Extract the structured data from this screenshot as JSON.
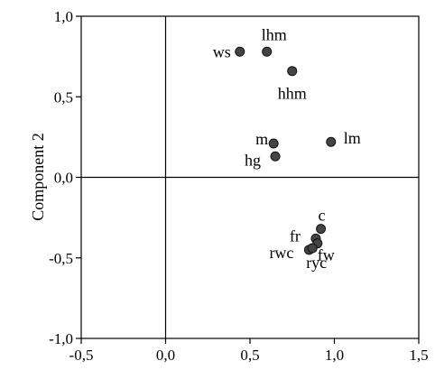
{
  "chart_data": {
    "type": "scatter",
    "title": "",
    "xlabel": "",
    "ylabel": "Component 2",
    "xlim": [
      -0.5,
      1.5
    ],
    "ylim": [
      -1.0,
      1.0
    ],
    "x_ticks": [
      -0.5,
      0.0,
      0.5,
      1.0,
      1.5
    ],
    "y_ticks": [
      -1.0,
      -0.5,
      0.0,
      0.5,
      1.0
    ],
    "x_tick_labels": [
      "-0,5",
      "0,0",
      "0,5",
      "1,0",
      "1,5"
    ],
    "y_tick_labels": [
      "-1,0",
      "-0,5",
      "0,0",
      "0,5",
      "1,0"
    ],
    "reference_lines": {
      "x": 0.0,
      "y": 0.0
    },
    "grid": false,
    "marker_color": "#444444",
    "points": [
      {
        "label": "ws",
        "x": 0.44,
        "y": 0.78
      },
      {
        "label": "lhm",
        "x": 0.6,
        "y": 0.78
      },
      {
        "label": "hhm",
        "x": 0.75,
        "y": 0.66
      },
      {
        "label": "m",
        "x": 0.64,
        "y": 0.21
      },
      {
        "label": "hg",
        "x": 0.65,
        "y": 0.13
      },
      {
        "label": "lm",
        "x": 0.98,
        "y": 0.22
      },
      {
        "label": "c",
        "x": 0.92,
        "y": -0.32
      },
      {
        "label": "fr",
        "x": 0.89,
        "y": -0.38
      },
      {
        "label": "fw",
        "x": 0.9,
        "y": -0.41
      },
      {
        "label": "rwc",
        "x": 0.85,
        "y": -0.45
      },
      {
        "label": "ryc",
        "x": 0.87,
        "y": -0.44
      }
    ]
  }
}
